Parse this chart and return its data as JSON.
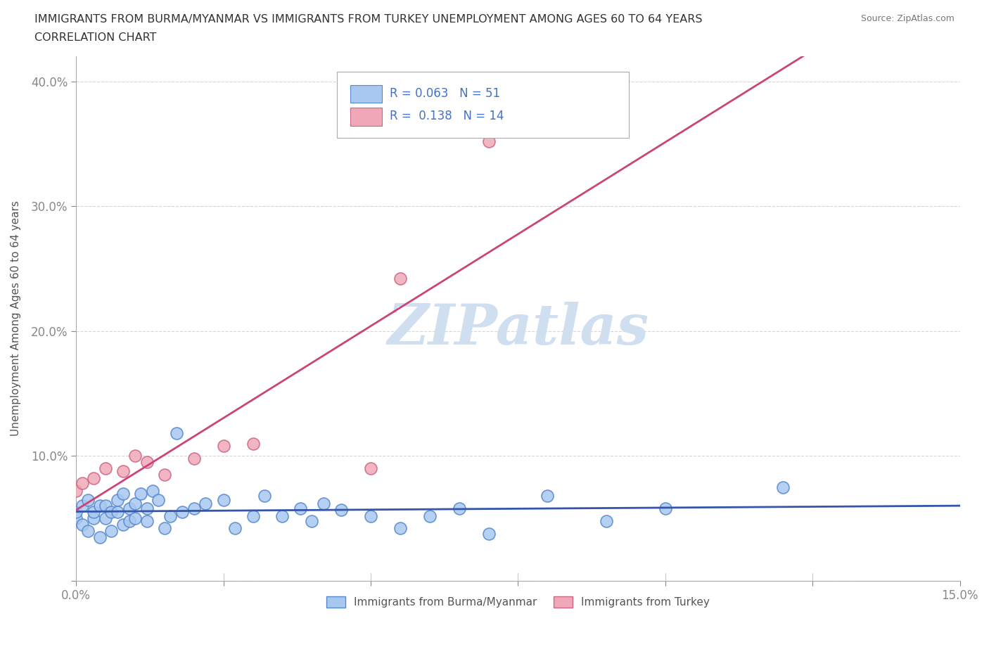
{
  "title_line1": "IMMIGRANTS FROM BURMA/MYANMAR VS IMMIGRANTS FROM TURKEY UNEMPLOYMENT AMONG AGES 60 TO 64 YEARS",
  "title_line2": "CORRELATION CHART",
  "source": "Source: ZipAtlas.com",
  "ylabel": "Unemployment Among Ages 60 to 64 years",
  "xlim": [
    0.0,
    0.15
  ],
  "ylim": [
    0.0,
    0.42
  ],
  "R_burma": 0.063,
  "N_burma": 51,
  "R_turkey": 0.138,
  "N_turkey": 14,
  "color_burma": "#a8c8f0",
  "color_turkey": "#f0a8b8",
  "edge_burma": "#5588cc",
  "edge_turkey": "#cc6688",
  "line_color_burma": "#3355aa",
  "line_color_turkey": "#cc4477",
  "watermark_color": "#d0dff0",
  "grid_color": "#cccccc",
  "background_color": "#ffffff",
  "burma_x": [
    0.0,
    0.0,
    0.001,
    0.001,
    0.002,
    0.002,
    0.003,
    0.003,
    0.004,
    0.004,
    0.005,
    0.005,
    0.006,
    0.006,
    0.007,
    0.007,
    0.008,
    0.008,
    0.009,
    0.009,
    0.01,
    0.01,
    0.011,
    0.012,
    0.012,
    0.013,
    0.014,
    0.015,
    0.016,
    0.017,
    0.018,
    0.02,
    0.022,
    0.025,
    0.027,
    0.03,
    0.032,
    0.035,
    0.038,
    0.04,
    0.042,
    0.045,
    0.05,
    0.055,
    0.06,
    0.065,
    0.07,
    0.08,
    0.09,
    0.1,
    0.12
  ],
  "burma_y": [
    0.05,
    0.055,
    0.045,
    0.06,
    0.04,
    0.065,
    0.05,
    0.055,
    0.035,
    0.06,
    0.05,
    0.06,
    0.04,
    0.055,
    0.055,
    0.065,
    0.045,
    0.07,
    0.048,
    0.058,
    0.05,
    0.062,
    0.07,
    0.048,
    0.058,
    0.072,
    0.065,
    0.042,
    0.052,
    0.118,
    0.055,
    0.058,
    0.062,
    0.065,
    0.042,
    0.052,
    0.068,
    0.052,
    0.058,
    0.048,
    0.062,
    0.057,
    0.052,
    0.042,
    0.052,
    0.058,
    0.038,
    0.068,
    0.048,
    0.058,
    0.075
  ],
  "turkey_x": [
    0.0,
    0.001,
    0.003,
    0.005,
    0.008,
    0.01,
    0.012,
    0.015,
    0.02,
    0.025,
    0.03,
    0.05,
    0.055,
    0.07
  ],
  "turkey_y": [
    0.072,
    0.078,
    0.082,
    0.09,
    0.088,
    0.1,
    0.095,
    0.085,
    0.098,
    0.108,
    0.11,
    0.09,
    0.242,
    0.352
  ]
}
